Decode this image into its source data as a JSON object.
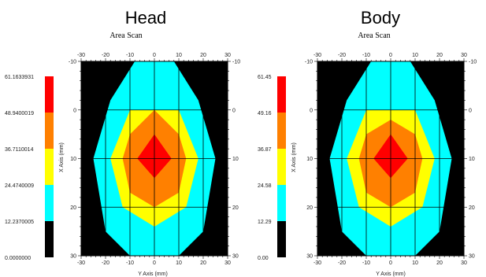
{
  "chart_data": [
    {
      "type": "heatmap",
      "title": "Head",
      "subtitle": "Area Scan",
      "xlabel": "Y Axis (mm)",
      "ylabel": "X Axis (mm)",
      "x_ticks": [
        "-30",
        "-20",
        "-10",
        "0",
        "10",
        "20",
        "30"
      ],
      "y_ticks": [
        "-10",
        "0",
        "10",
        "20",
        "30"
      ],
      "xlim": [
        -30,
        30
      ],
      "ylim": [
        -10,
        30
      ],
      "y_inverted": true,
      "grid": true,
      "legend_levels": [
        "61.1633931",
        "48.9400019",
        "36.7110014",
        "24.4740009",
        "12.2370005",
        "0.0000000"
      ],
      "colors": [
        "#ff0000",
        "#ff8000",
        "#ffff00",
        "#00ffff",
        "#000000"
      ],
      "contours": [
        {
          "level": "12.2370005",
          "color": "#00ffff",
          "points": [
            [
              -8,
              -10
            ],
            [
              8,
              -10
            ],
            [
              18,
              -2
            ],
            [
              25,
              10
            ],
            [
              20,
              25
            ],
            [
              10,
              30
            ],
            [
              -10,
              30
            ],
            [
              -20,
              25
            ],
            [
              -25,
              10
            ],
            [
              -18,
              -2
            ]
          ]
        },
        {
          "level": "24.4740009",
          "color": "#ffff00",
          "points": [
            [
              -10,
              0
            ],
            [
              10,
              0
            ],
            [
              18,
              10
            ],
            [
              13,
              20
            ],
            [
              0,
              24
            ],
            [
              -13,
              20
            ],
            [
              -18,
              10
            ]
          ]
        },
        {
          "level": "36.7110014",
          "color": "#ff8000",
          "points": [
            [
              0,
              0
            ],
            [
              10,
              5
            ],
            [
              13,
              10
            ],
            [
              10,
              17
            ],
            [
              0,
              20
            ],
            [
              -10,
              17
            ],
            [
              -13,
              10
            ],
            [
              -10,
              5
            ]
          ]
        },
        {
          "level": "48.9400019",
          "color": "#ff0000",
          "points": [
            [
              0,
              5
            ],
            [
              7,
              10
            ],
            [
              0,
              14
            ],
            [
              -7,
              10
            ]
          ]
        }
      ]
    },
    {
      "type": "heatmap",
      "title": "Body",
      "subtitle": "Area Scan",
      "xlabel": "Y Axis (mm)",
      "ylabel": "X Axis (mm)",
      "x_ticks": [
        "-30",
        "-20",
        "-10",
        "0",
        "10",
        "20",
        "30"
      ],
      "y_ticks": [
        "-10",
        "0",
        "10",
        "20",
        "30"
      ],
      "xlim": [
        -30,
        30
      ],
      "ylim": [
        -10,
        30
      ],
      "y_inverted": true,
      "grid": true,
      "legend_levels": [
        "61.45",
        "49.16",
        "36.87",
        "24.58",
        "12.29",
        "0.00"
      ],
      "colors": [
        "#ff0000",
        "#ff8000",
        "#ffff00",
        "#00ffff",
        "#000000"
      ],
      "contours": [
        {
          "level": "12.29",
          "color": "#00ffff",
          "points": [
            [
              -8,
              -10
            ],
            [
              8,
              -10
            ],
            [
              18,
              -2
            ],
            [
              25,
              10
            ],
            [
              20,
              25
            ],
            [
              10,
              30
            ],
            [
              -10,
              30
            ],
            [
              -20,
              25
            ],
            [
              -25,
              10
            ],
            [
              -18,
              -2
            ]
          ]
        },
        {
          "level": "24.58",
          "color": "#ffff00",
          "points": [
            [
              -10,
              0
            ],
            [
              10,
              0
            ],
            [
              18,
              10
            ],
            [
              13,
              20
            ],
            [
              0,
              24
            ],
            [
              -13,
              20
            ],
            [
              -18,
              10
            ]
          ]
        },
        {
          "level": "36.87",
          "color": "#ff8000",
          "points": [
            [
              0,
              2
            ],
            [
              10,
              5
            ],
            [
              13,
              10
            ],
            [
              10,
              17
            ],
            [
              0,
              20
            ],
            [
              -10,
              17
            ],
            [
              -13,
              10
            ],
            [
              -10,
              5
            ]
          ]
        },
        {
          "level": "49.16",
          "color": "#ff0000",
          "points": [
            [
              0,
              5
            ],
            [
              7,
              10
            ],
            [
              0,
              14
            ],
            [
              -7,
              10
            ]
          ]
        }
      ]
    }
  ]
}
